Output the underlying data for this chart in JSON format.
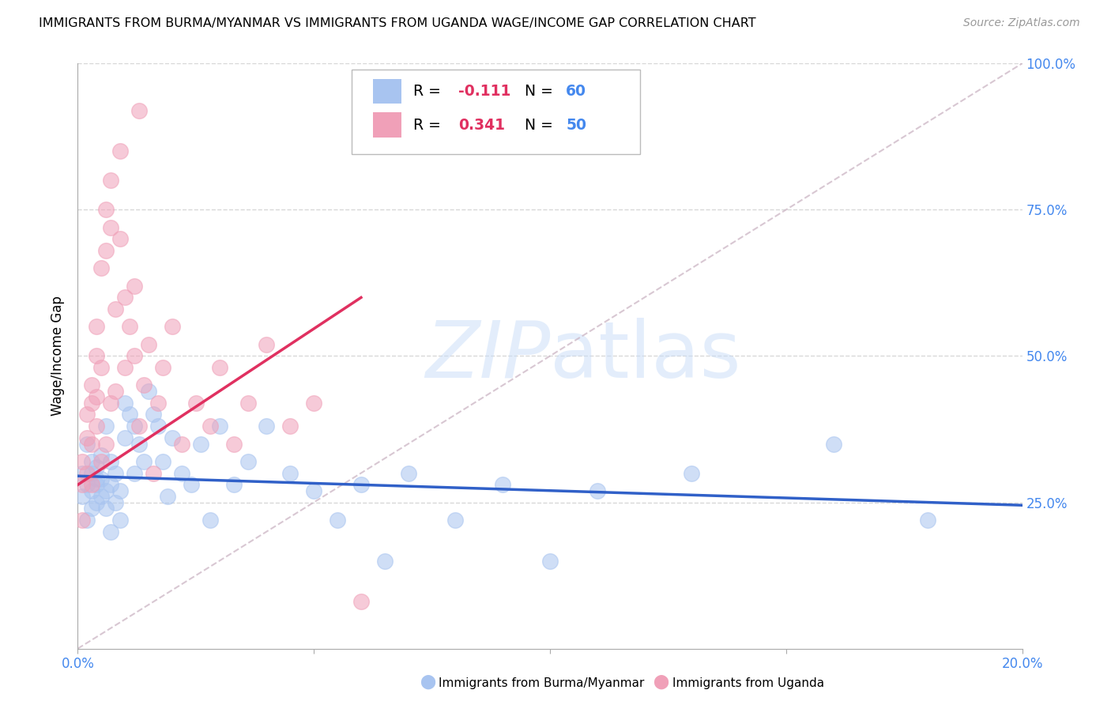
{
  "title": "IMMIGRANTS FROM BURMA/MYANMAR VS IMMIGRANTS FROM UGANDA WAGE/INCOME GAP CORRELATION CHART",
  "source": "Source: ZipAtlas.com",
  "ylabel": "Wage/Income Gap",
  "xlim": [
    0.0,
    0.2
  ],
  "ylim": [
    0.0,
    1.0
  ],
  "color_burma": "#a8c4f0",
  "color_uganda": "#f0a0b8",
  "color_burma_line": "#3060c8",
  "color_uganda_line": "#e03060",
  "color_diag_line": "#c8b0c0",
  "color_grid": "#d8d8d8",
  "color_axis_label": "#4488ee",
  "watermark_color": "#c8ddf8",
  "burma_x": [
    0.001,
    0.001,
    0.002,
    0.002,
    0.002,
    0.003,
    0.003,
    0.003,
    0.003,
    0.004,
    0.004,
    0.004,
    0.004,
    0.005,
    0.005,
    0.005,
    0.006,
    0.006,
    0.006,
    0.007,
    0.007,
    0.007,
    0.008,
    0.008,
    0.009,
    0.009,
    0.01,
    0.01,
    0.011,
    0.012,
    0.012,
    0.013,
    0.014,
    0.015,
    0.016,
    0.017,
    0.018,
    0.019,
    0.02,
    0.022,
    0.024,
    0.026,
    0.028,
    0.03,
    0.033,
    0.036,
    0.04,
    0.045,
    0.05,
    0.055,
    0.06,
    0.065,
    0.07,
    0.08,
    0.09,
    0.1,
    0.11,
    0.13,
    0.16,
    0.18
  ],
  "burma_y": [
    0.3,
    0.26,
    0.35,
    0.28,
    0.22,
    0.32,
    0.27,
    0.24,
    0.3,
    0.29,
    0.25,
    0.31,
    0.28,
    0.33,
    0.26,
    0.29,
    0.38,
    0.24,
    0.27,
    0.32,
    0.2,
    0.28,
    0.3,
    0.25,
    0.27,
    0.22,
    0.42,
    0.36,
    0.4,
    0.38,
    0.3,
    0.35,
    0.32,
    0.44,
    0.4,
    0.38,
    0.32,
    0.26,
    0.36,
    0.3,
    0.28,
    0.35,
    0.22,
    0.38,
    0.28,
    0.32,
    0.38,
    0.3,
    0.27,
    0.22,
    0.28,
    0.15,
    0.3,
    0.22,
    0.28,
    0.15,
    0.27,
    0.3,
    0.35,
    0.22
  ],
  "uganda_x": [
    0.001,
    0.001,
    0.001,
    0.002,
    0.002,
    0.002,
    0.003,
    0.003,
    0.003,
    0.003,
    0.004,
    0.004,
    0.004,
    0.004,
    0.005,
    0.005,
    0.005,
    0.006,
    0.006,
    0.006,
    0.007,
    0.007,
    0.007,
    0.008,
    0.008,
    0.009,
    0.009,
    0.01,
    0.01,
    0.011,
    0.012,
    0.012,
    0.013,
    0.013,
    0.014,
    0.015,
    0.016,
    0.017,
    0.018,
    0.02,
    0.022,
    0.025,
    0.028,
    0.03,
    0.033,
    0.036,
    0.04,
    0.045,
    0.05,
    0.06
  ],
  "uganda_y": [
    0.32,
    0.28,
    0.22,
    0.4,
    0.36,
    0.3,
    0.45,
    0.42,
    0.35,
    0.28,
    0.5,
    0.55,
    0.43,
    0.38,
    0.65,
    0.48,
    0.32,
    0.75,
    0.68,
    0.35,
    0.8,
    0.72,
    0.42,
    0.58,
    0.44,
    0.7,
    0.85,
    0.6,
    0.48,
    0.55,
    0.62,
    0.5,
    0.92,
    0.38,
    0.45,
    0.52,
    0.3,
    0.42,
    0.48,
    0.55,
    0.35,
    0.42,
    0.38,
    0.48,
    0.35,
    0.42,
    0.52,
    0.38,
    0.42,
    0.08
  ],
  "burma_trend_x0": 0.0,
  "burma_trend_x1": 0.2,
  "burma_trend_y0": 0.295,
  "burma_trend_y1": 0.245,
  "uganda_trend_x0": 0.0,
  "uganda_trend_x1": 0.06,
  "uganda_trend_y0": 0.28,
  "uganda_trend_y1": 0.6
}
